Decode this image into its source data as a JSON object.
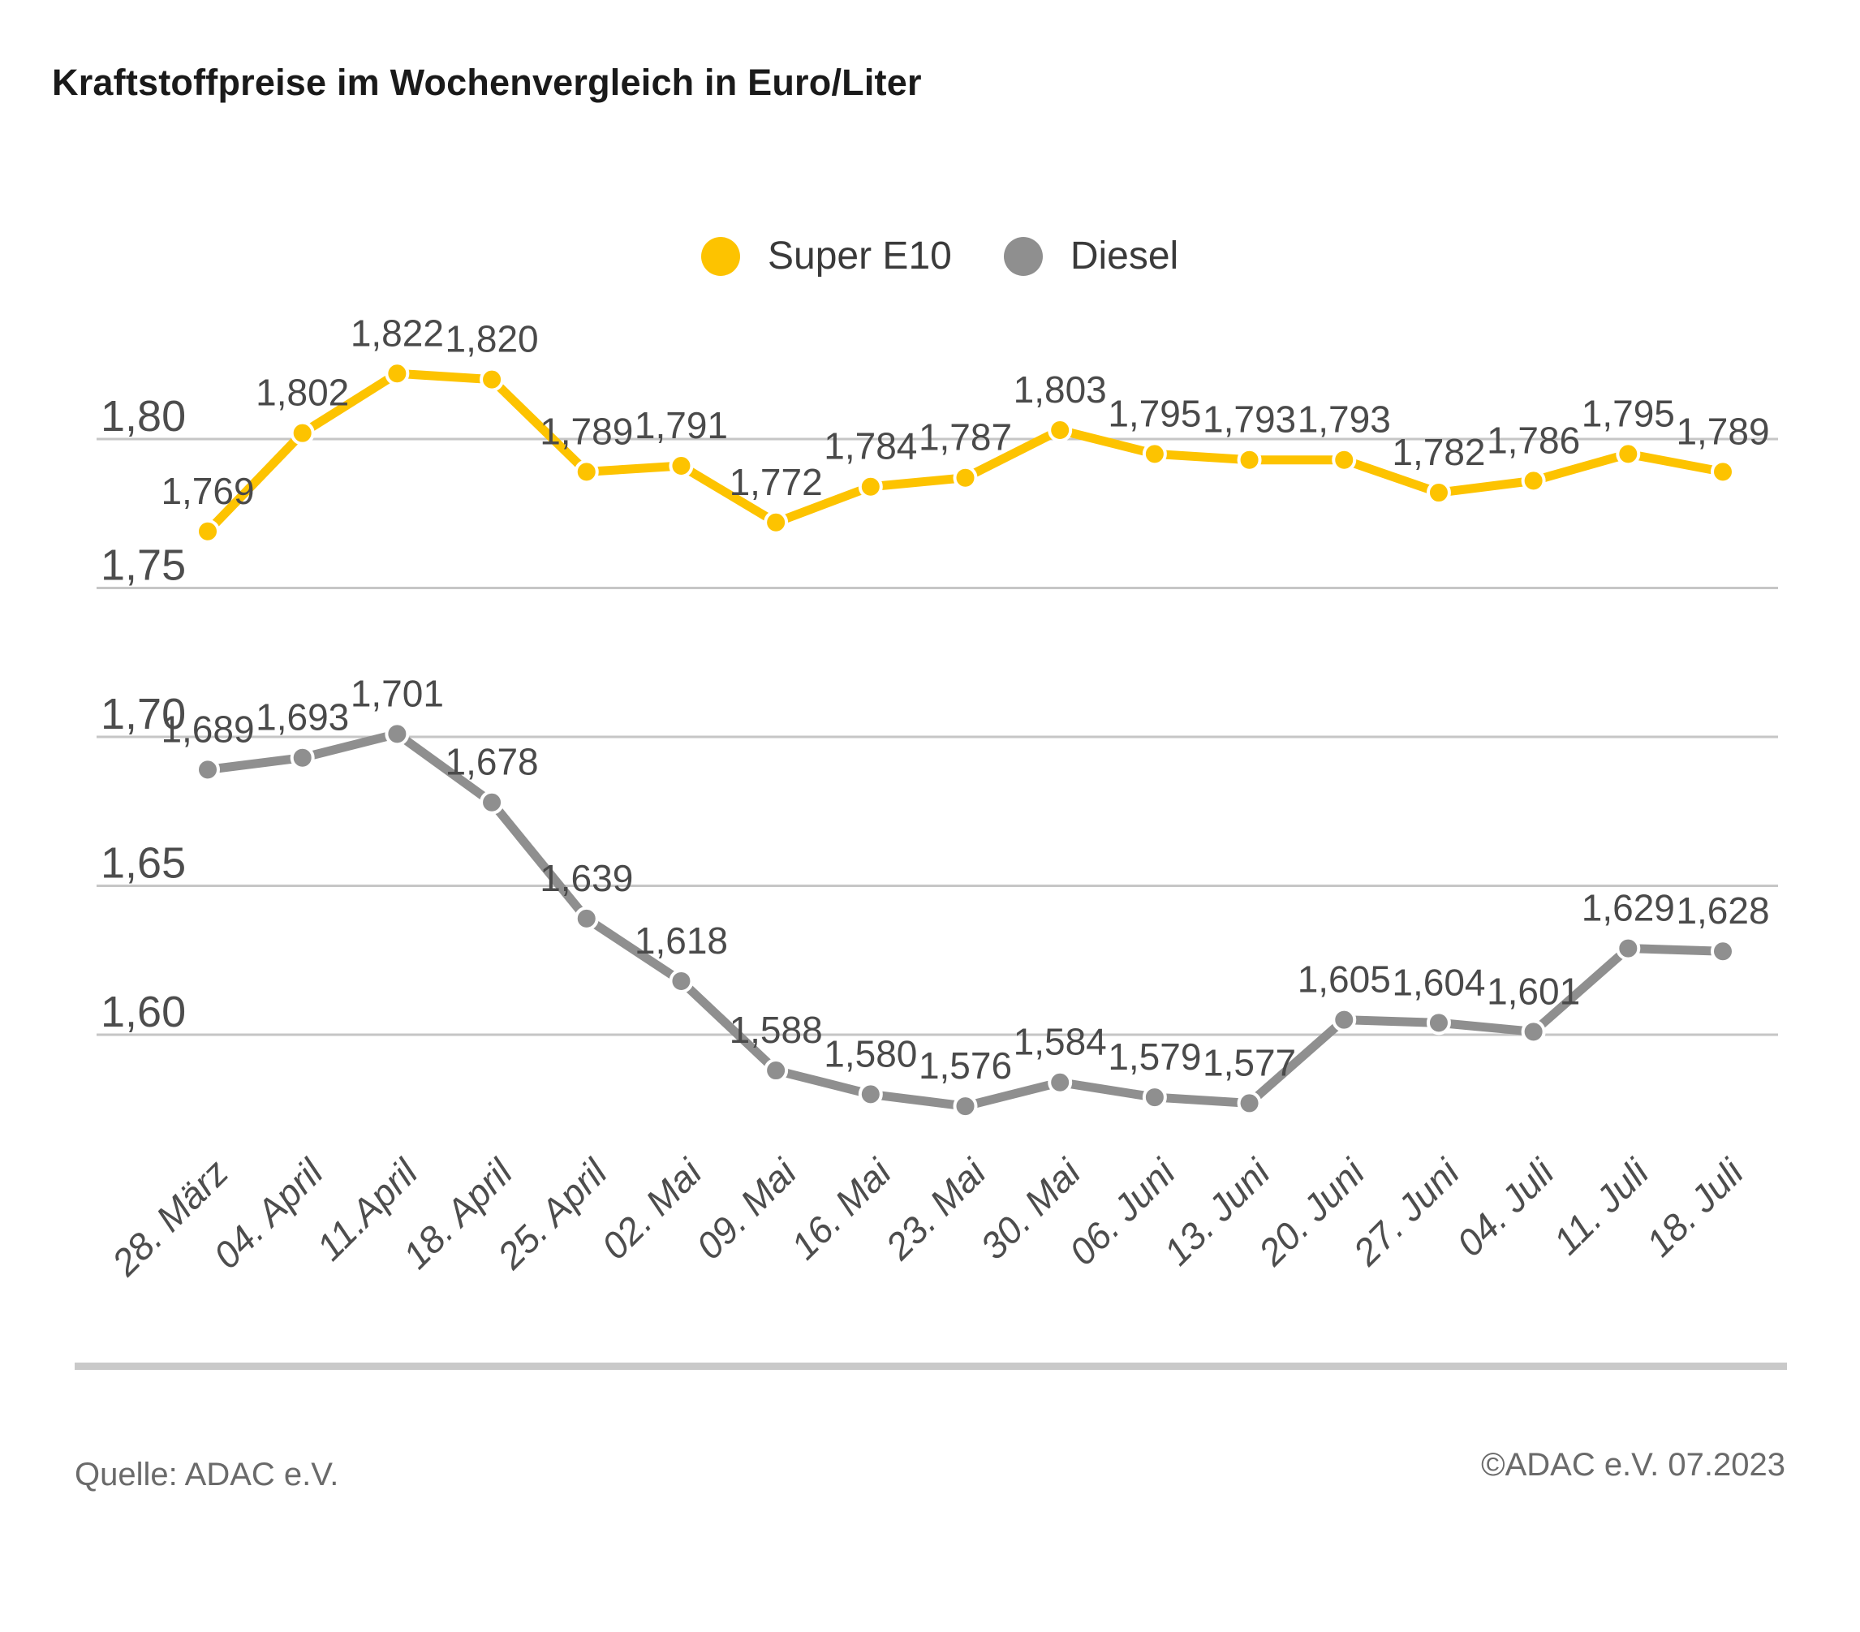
{
  "title": "Kraftstoffpreise im Wochenvergleich in Euro/Liter",
  "footer": {
    "source": "Quelle: ADAC e.V.",
    "copyright": "©ADAC e.V. 07.2023"
  },
  "chart_data": {
    "type": "line",
    "title": "Kraftstoffpreise im Wochenvergleich in Euro/Liter",
    "xlabel": "",
    "ylabel": "Euro/Liter",
    "categories": [
      "28. März",
      "04. April",
      "11.April",
      "18. April",
      "25. April",
      "02. Mai",
      "09. Mai",
      "16. Mai",
      "23. Mai",
      "30. Mai",
      "06. Juni",
      "13. Juni",
      "20. Juni",
      "27. Juni",
      "04. Juli",
      "11. Juli",
      "18. Juli"
    ],
    "series": [
      {
        "name": "Super E10",
        "color": "#fdc300",
        "values": [
          1.769,
          1.802,
          1.822,
          1.82,
          1.789,
          1.791,
          1.772,
          1.784,
          1.787,
          1.803,
          1.795,
          1.793,
          1.793,
          1.782,
          1.786,
          1.795,
          1.789
        ]
      },
      {
        "name": "Diesel",
        "color": "#8f8f8f",
        "values": [
          1.689,
          1.693,
          1.701,
          1.678,
          1.639,
          1.618,
          1.588,
          1.58,
          1.576,
          1.584,
          1.579,
          1.577,
          1.605,
          1.604,
          1.601,
          1.629,
          1.628
        ]
      }
    ],
    "yticks": [
      1.8,
      1.75,
      1.7,
      1.65,
      1.6
    ],
    "ylim": [
      1.56,
      1.83
    ],
    "grid": true,
    "legend_position": "top-center",
    "value_labels": true,
    "decimal_comma": true,
    "x_labels_rotation_deg": -45,
    "x_labels_italic": true,
    "style": {
      "grid_color": "#c6c6c6",
      "axis_text_color": "#4d4d4d",
      "label_color": "#4a4a4a",
      "marker_ring_color": "#ffffff"
    }
  }
}
